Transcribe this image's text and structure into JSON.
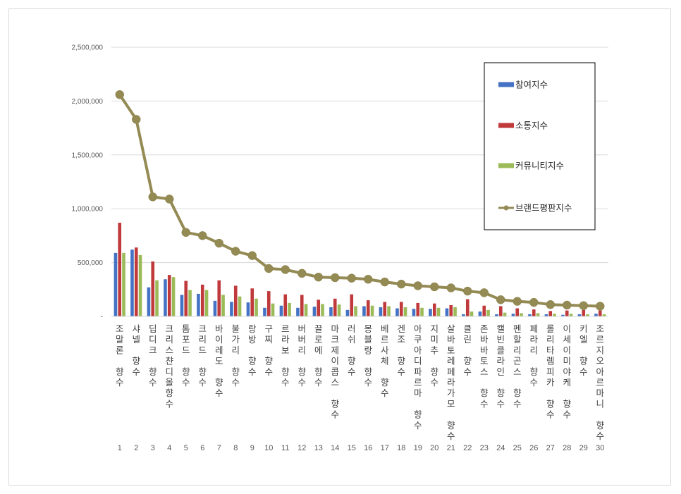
{
  "chart_data": {
    "type": "bar",
    "ylim": [
      0,
      2500000
    ],
    "yticks": [
      0,
      500000,
      1000000,
      1500000,
      2000000,
      2500000
    ],
    "ytick_labels": [
      "-",
      "500,000",
      "1,000,000",
      "1,500,000",
      "2,000,000",
      "2,500,000"
    ],
    "grid": true,
    "legend_position": "right",
    "categories": [
      "1",
      "2",
      "3",
      "4",
      "5",
      "6",
      "7",
      "8",
      "9",
      "10",
      "11",
      "12",
      "13",
      "14",
      "15",
      "16",
      "17",
      "18",
      "19",
      "20",
      "21",
      "22",
      "23",
      "24",
      "25",
      "26",
      "27",
      "28",
      "29",
      "30"
    ],
    "category_names": [
      "조말론 향수",
      "샤넬 향수",
      "딥디크 향수",
      "크리스챤디올향수",
      "톰포드 향수",
      "크리드 향수",
      "바이레도 향수",
      "불가리 향수",
      "랑방 향수",
      "구찌 향수",
      "르라보 향수",
      "버버리 향수",
      "끌로에 향수",
      "마크제이콥스 향수",
      "러쉬 향수",
      "몽블랑 향수",
      "베르사체 향수",
      "겐조 향수",
      "아쿠아디파르마 향수",
      "지미추 향수",
      "살바토레페라가모 향수",
      "클린 향수",
      "존바바토스 향수",
      "캘빈클라인 향수",
      "펜할리곤스 향수",
      "페라리 향수",
      "롤리타렘피카 향수",
      "이세이미야케 향수",
      "키엘 향수",
      "조르지오아르마니 향수"
    ],
    "series": [
      {
        "name": "참여지수",
        "type": "bar",
        "color": "#4472c4",
        "values": [
          590000,
          620000,
          270000,
          345000,
          200000,
          210000,
          145000,
          135000,
          130000,
          80000,
          100000,
          80000,
          90000,
          85000,
          60000,
          95000,
          85000,
          75000,
          70000,
          70000,
          75000,
          20000,
          45000,
          20000,
          25000,
          20000,
          20000,
          15000,
          20000,
          25000
        ]
      },
      {
        "name": "소통지수",
        "type": "bar",
        "color": "#c0393b",
        "values": [
          870000,
          640000,
          510000,
          385000,
          330000,
          295000,
          335000,
          285000,
          260000,
          235000,
          205000,
          200000,
          155000,
          165000,
          205000,
          150000,
          135000,
          135000,
          125000,
          120000,
          105000,
          160000,
          100000,
          95000,
          75000,
          65000,
          50000,
          55000,
          60000,
          55000
        ]
      },
      {
        "name": "커뮤니티지수",
        "type": "bar",
        "color": "#9bbb59",
        "values": [
          590000,
          570000,
          335000,
          365000,
          245000,
          245000,
          200000,
          185000,
          165000,
          120000,
          125000,
          115000,
          115000,
          110000,
          95000,
          100000,
          95000,
          85000,
          80000,
          80000,
          85000,
          45000,
          60000,
          35000,
          30000,
          30000,
          25000,
          25000,
          20000,
          20000
        ]
      },
      {
        "name": "브랜드평판지수",
        "type": "line",
        "color": "#948a54",
        "values": [
          2060000,
          1830000,
          1110000,
          1090000,
          780000,
          750000,
          680000,
          605000,
          565000,
          445000,
          435000,
          400000,
          365000,
          360000,
          355000,
          345000,
          320000,
          300000,
          285000,
          275000,
          265000,
          235000,
          220000,
          155000,
          140000,
          130000,
          110000,
          105000,
          100000,
          95000
        ]
      }
    ]
  }
}
